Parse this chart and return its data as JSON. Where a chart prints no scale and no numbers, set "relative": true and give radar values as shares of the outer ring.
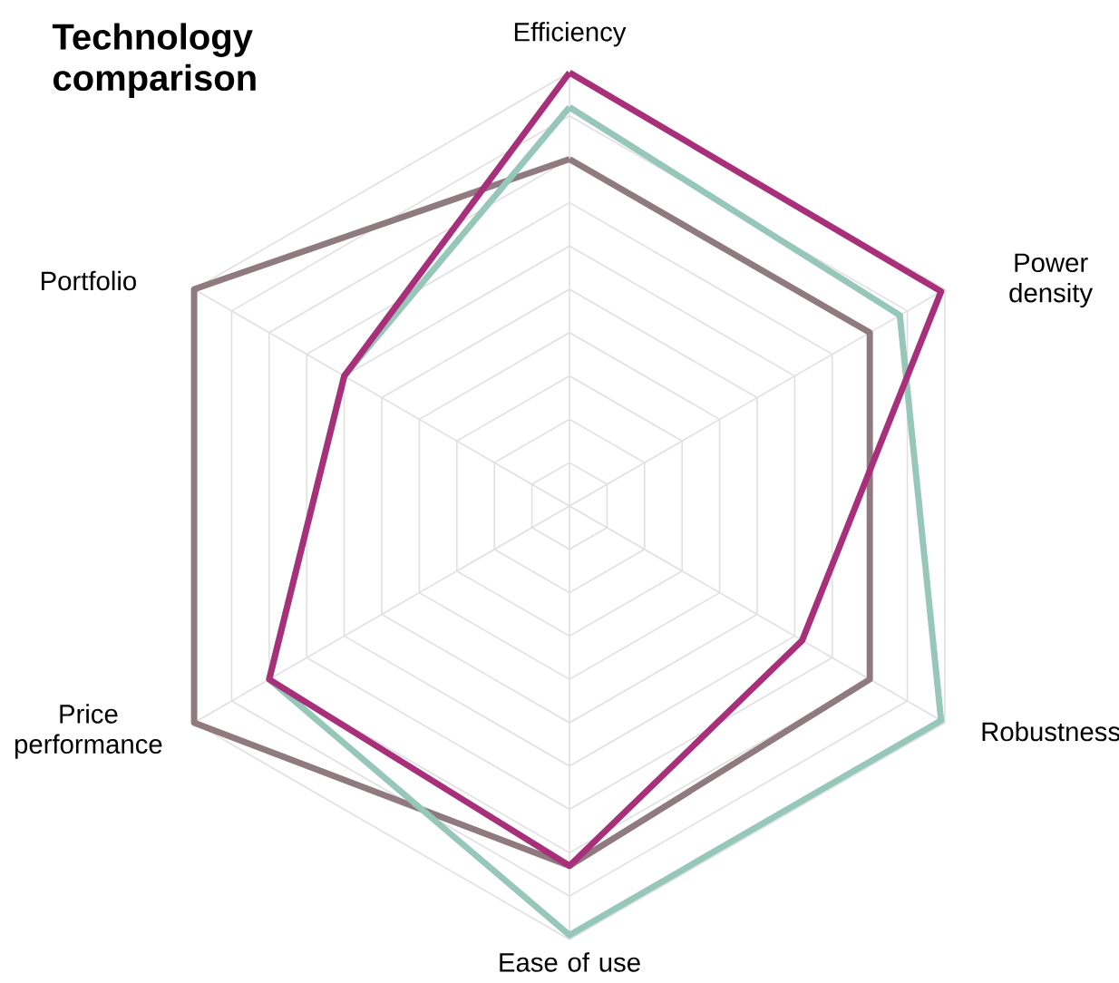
{
  "chart_data": {
    "type": "radar",
    "title": "Technology comparison",
    "relative": true,
    "grid": true,
    "legend": false,
    "marker": "none",
    "line_style": "solid",
    "categories": [
      "Efficiency",
      "Power density",
      "Robustness",
      "Ease of use",
      "Price performance",
      "Portfolio"
    ],
    "series": [
      {
        "color": "#8f7a80",
        "values": [
          0.8,
          0.8,
          0.8,
          0.83,
          1.0,
          1.0
        ]
      },
      {
        "color": "#96c7b9",
        "values": [
          0.92,
          0.88,
          0.99,
          0.99,
          0.8,
          0.6
        ]
      },
      {
        "color": "#a8307a",
        "values": [
          1.0,
          0.99,
          0.62,
          0.83,
          0.8,
          0.6
        ]
      }
    ]
  }
}
